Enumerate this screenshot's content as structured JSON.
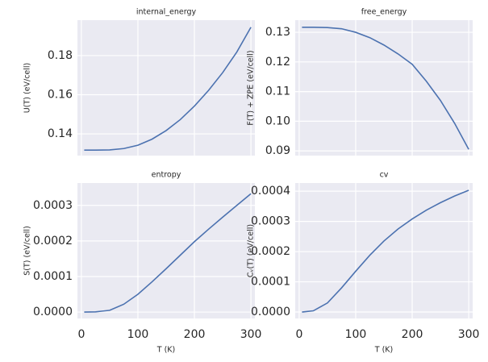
{
  "chart_data": [
    {
      "type": "line",
      "title": "internal_energy",
      "ylabel": "U(T) (eV/cell)",
      "show_xticklabels": false,
      "x": [
        5,
        25,
        50,
        75,
        100,
        125,
        150,
        175,
        200,
        225,
        250,
        275,
        300
      ],
      "series": [
        {
          "name": "internal_energy",
          "color": "#4c72b0",
          "values": [
            0.1317,
            0.1317,
            0.1318,
            0.1325,
            0.1342,
            0.1373,
            0.1417,
            0.1473,
            0.1542,
            0.1622,
            0.1713,
            0.1818,
            0.1945
          ]
        }
      ],
      "xlim": [
        -7,
        307
      ],
      "xticks": [
        0,
        100,
        200,
        300
      ],
      "ylim": [
        0.1289,
        0.1981
      ],
      "yticks": [
        0.14,
        0.16,
        0.18
      ],
      "grid": true
    },
    {
      "type": "line",
      "title": "free_energy",
      "ylabel": "F(T) + ZPE (eV/cell)",
      "show_xticklabels": false,
      "x": [
        5,
        25,
        50,
        75,
        100,
        125,
        150,
        175,
        200,
        225,
        250,
        275,
        300
      ],
      "series": [
        {
          "name": "free_energy",
          "color": "#4c72b0",
          "values": [
            0.1317,
            0.1317,
            0.1316,
            0.1312,
            0.13,
            0.1282,
            0.1257,
            0.1227,
            0.1192,
            0.1135,
            0.107,
            0.0993,
            0.0905
          ]
        }
      ],
      "xlim": [
        -7,
        307
      ],
      "xticks": [
        0,
        100,
        200,
        300
      ],
      "ylim": [
        0.0884,
        0.1341
      ],
      "yticks": [
        0.09,
        {
          "value": 0.1,
          "label": "0.10"
        },
        0.11,
        0.12,
        0.13
      ],
      "grid": true
    },
    {
      "type": "line",
      "title": "entropy",
      "ylabel": "S(T) (eV/cell)",
      "xlabel": "T (K)",
      "show_xticklabels": true,
      "x": [
        5,
        25,
        50,
        75,
        100,
        125,
        150,
        175,
        200,
        225,
        250,
        275,
        300
      ],
      "series": [
        {
          "name": "entropy",
          "color": "#4c72b0",
          "values": [
            0,
            5e-07,
            5e-06,
            2.2e-05,
            5e-05,
            8.5e-05,
            0.000122,
            0.00016,
            0.000198,
            0.000233,
            0.000267,
            0.0003,
            0.000333
          ]
        }
      ],
      "xlim": [
        -7,
        307
      ],
      "xticks": [
        0,
        100,
        200,
        300
      ],
      "ylim": [
        -1.8e-05,
        0.000363
      ],
      "yticks": [
        {
          "value": 0,
          "label": "0.0000"
        },
        0.0001,
        0.0002,
        0.0003
      ],
      "grid": true
    },
    {
      "type": "line",
      "title": "cv",
      "ylabel": "Cᵥ(T) (eV/cell)",
      "xlabel": "T (K)",
      "show_xticklabels": true,
      "x": [
        5,
        25,
        50,
        75,
        100,
        125,
        150,
        175,
        200,
        225,
        250,
        275,
        300
      ],
      "series": [
        {
          "name": "cv",
          "color": "#4c72b0",
          "values": [
            0,
            4e-06,
            3e-05,
            8e-05,
            0.000135,
            0.000188,
            0.000235,
            0.000275,
            0.000308,
            0.000337,
            0.000362,
            0.000384,
            0.000403
          ]
        }
      ],
      "xlim": [
        -7,
        307
      ],
      "xticks": [
        0,
        100,
        200,
        300
      ],
      "ylim": [
        -2.13e-05,
        0.000427
      ],
      "yticks": [
        {
          "value": 0,
          "label": "0.0000"
        },
        0.0001,
        0.0002,
        0.0003,
        0.0004
      ],
      "grid": true
    }
  ]
}
